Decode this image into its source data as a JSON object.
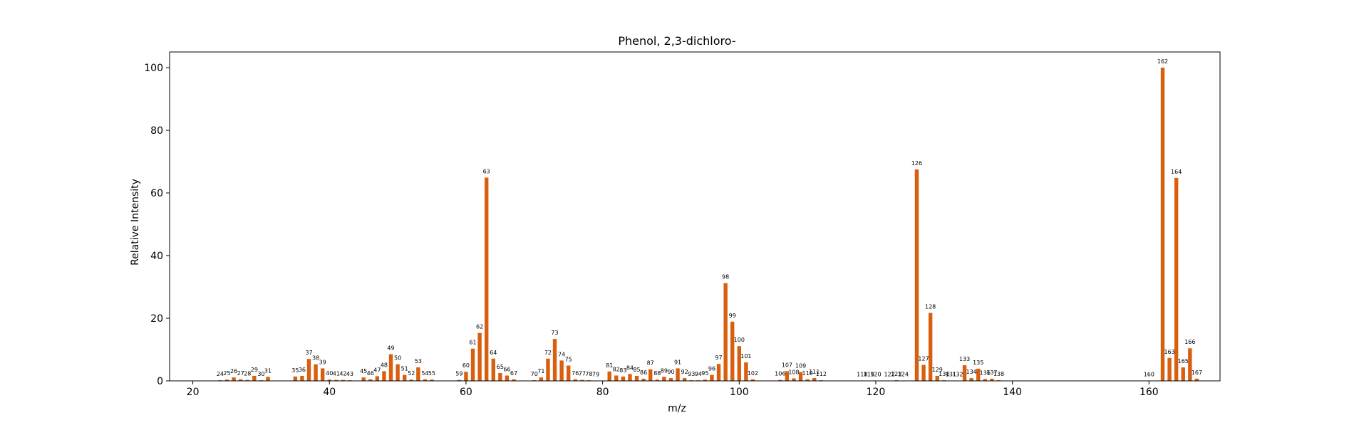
{
  "chart_data": {
    "type": "bar",
    "title": "Phenol, 2,3-dichloro-",
    "xlabel": "m/z",
    "ylabel": "Relative Intensity",
    "xlim": [
      16.6,
      170.4
    ],
    "ylim": [
      0,
      105
    ],
    "xticks": [
      20,
      40,
      60,
      80,
      100,
      120,
      140,
      160
    ],
    "yticks": [
      0,
      20,
      40,
      60,
      80,
      100
    ],
    "grid": false,
    "bar_color": "#d95f0e",
    "points": [
      {
        "x": 24,
        "y": 0.2
      },
      {
        "x": 25,
        "y": 0.4
      },
      {
        "x": 26,
        "y": 1.1
      },
      {
        "x": 27,
        "y": 0.5
      },
      {
        "x": 28,
        "y": 0.3
      },
      {
        "x": 29,
        "y": 1.6
      },
      {
        "x": 30,
        "y": 0.2
      },
      {
        "x": 31,
        "y": 1.3
      },
      {
        "x": 35,
        "y": 1.4
      },
      {
        "x": 36,
        "y": 1.6
      },
      {
        "x": 37,
        "y": 7.0
      },
      {
        "x": 38,
        "y": 5.3
      },
      {
        "x": 39,
        "y": 4.0
      },
      {
        "x": 40,
        "y": 0.4
      },
      {
        "x": 41,
        "y": 0.3
      },
      {
        "x": 42,
        "y": 0.3
      },
      {
        "x": 43,
        "y": 0.2
      },
      {
        "x": 45,
        "y": 1.1
      },
      {
        "x": 46,
        "y": 0.5
      },
      {
        "x": 47,
        "y": 1.5
      },
      {
        "x": 48,
        "y": 3.1
      },
      {
        "x": 49,
        "y": 8.5
      },
      {
        "x": 50,
        "y": 5.3
      },
      {
        "x": 51,
        "y": 1.9
      },
      {
        "x": 52,
        "y": 0.4
      },
      {
        "x": 53,
        "y": 4.3
      },
      {
        "x": 54,
        "y": 0.5
      },
      {
        "x": 55,
        "y": 0.4
      },
      {
        "x": 59,
        "y": 0.3
      },
      {
        "x": 60,
        "y": 2.9
      },
      {
        "x": 61,
        "y": 10.3
      },
      {
        "x": 62,
        "y": 15.3
      },
      {
        "x": 63,
        "y": 64.9
      },
      {
        "x": 64,
        "y": 7.1
      },
      {
        "x": 65,
        "y": 2.5
      },
      {
        "x": 66,
        "y": 1.7
      },
      {
        "x": 67,
        "y": 0.5
      },
      {
        "x": 70,
        "y": 0.2
      },
      {
        "x": 71,
        "y": 1.1
      },
      {
        "x": 72,
        "y": 7.1
      },
      {
        "x": 73,
        "y": 13.4
      },
      {
        "x": 74,
        "y": 6.5
      },
      {
        "x": 75,
        "y": 4.9
      },
      {
        "x": 76,
        "y": 0.5
      },
      {
        "x": 77,
        "y": 0.3
      },
      {
        "x": 78,
        "y": 0.2
      },
      {
        "x": 79,
        "y": 0.1
      },
      {
        "x": 81,
        "y": 3.0
      },
      {
        "x": 82,
        "y": 1.7
      },
      {
        "x": 83,
        "y": 1.4
      },
      {
        "x": 84,
        "y": 2.2
      },
      {
        "x": 85,
        "y": 1.6
      },
      {
        "x": 86,
        "y": 0.7
      },
      {
        "x": 87,
        "y": 3.7
      },
      {
        "x": 88,
        "y": 0.4
      },
      {
        "x": 89,
        "y": 1.3
      },
      {
        "x": 90,
        "y": 0.9
      },
      {
        "x": 91,
        "y": 4.0
      },
      {
        "x": 92,
        "y": 0.9
      },
      {
        "x": 93,
        "y": 0.2
      },
      {
        "x": 94,
        "y": 0.2
      },
      {
        "x": 95,
        "y": 0.4
      },
      {
        "x": 96,
        "y": 1.9
      },
      {
        "x": 97,
        "y": 5.4
      },
      {
        "x": 98,
        "y": 31.2
      },
      {
        "x": 99,
        "y": 18.9
      },
      {
        "x": 100,
        "y": 11.1
      },
      {
        "x": 101,
        "y": 5.9
      },
      {
        "x": 102,
        "y": 0.5
      },
      {
        "x": 106,
        "y": 0.3
      },
      {
        "x": 107,
        "y": 3.1
      },
      {
        "x": 108,
        "y": 0.8
      },
      {
        "x": 109,
        "y": 2.8
      },
      {
        "x": 110,
        "y": 0.5
      },
      {
        "x": 111,
        "y": 0.9
      },
      {
        "x": 112,
        "y": 0.2
      },
      {
        "x": 118,
        "y": 0.1
      },
      {
        "x": 119,
        "y": 0.1
      },
      {
        "x": 120,
        "y": 0.1
      },
      {
        "x": 122,
        "y": 0.1
      },
      {
        "x": 123,
        "y": 0.2
      },
      {
        "x": 124,
        "y": 0.1
      },
      {
        "x": 126,
        "y": 67.5
      },
      {
        "x": 127,
        "y": 5.1
      },
      {
        "x": 128,
        "y": 21.7
      },
      {
        "x": 129,
        "y": 1.6
      },
      {
        "x": 130,
        "y": 0.2
      },
      {
        "x": 131,
        "y": 0.1
      },
      {
        "x": 132,
        "y": 0.1
      },
      {
        "x": 133,
        "y": 5.0
      },
      {
        "x": 134,
        "y": 0.9
      },
      {
        "x": 135,
        "y": 3.9
      },
      {
        "x": 136,
        "y": 0.6
      },
      {
        "x": 137,
        "y": 0.7
      },
      {
        "x": 138,
        "y": 0.2
      },
      {
        "x": 160,
        "y": 0.1
      },
      {
        "x": 162,
        "y": 100.0
      },
      {
        "x": 163,
        "y": 7.3
      },
      {
        "x": 164,
        "y": 64.8
      },
      {
        "x": 165,
        "y": 4.3
      },
      {
        "x": 166,
        "y": 10.4
      },
      {
        "x": 167,
        "y": 0.7
      }
    ]
  }
}
